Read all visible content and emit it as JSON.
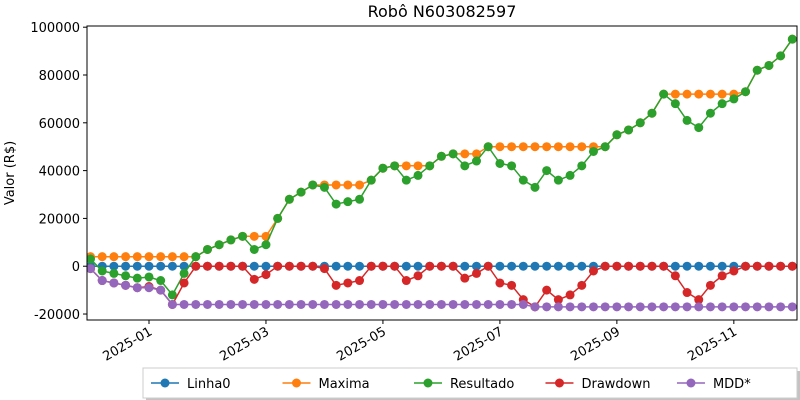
{
  "chart_data": {
    "type": "line",
    "title": "Robô N603082597",
    "y_label": "Valor (R$)",
    "categories": [
      null,
      null,
      null,
      null,
      null,
      "2025-01",
      null,
      null,
      null,
      null,
      null,
      null,
      null,
      null,
      null,
      "2025-03",
      null,
      null,
      null,
      null,
      null,
      null,
      null,
      null,
      null,
      "2025-05",
      null,
      null,
      null,
      null,
      null,
      null,
      null,
      null,
      null,
      "2025-07",
      null,
      null,
      null,
      null,
      null,
      null,
      null,
      null,
      null,
      "2025-09",
      null,
      null,
      null,
      null,
      null,
      null,
      null,
      null,
      null,
      "2025-11",
      null,
      null,
      null,
      null,
      null
    ],
    "ylim": [
      -22500,
      100500
    ],
    "yticks": [
      -20000,
      0,
      20000,
      40000,
      60000,
      80000,
      100000
    ],
    "legend": "bottom",
    "series": [
      {
        "name": "Linha0",
        "color": "#1f77b4",
        "values": [
          0,
          0,
          0,
          0,
          0,
          0,
          0,
          0,
          0,
          0,
          0,
          0,
          0,
          0,
          0,
          0,
          0,
          0,
          0,
          0,
          0,
          0,
          0,
          0,
          0,
          0,
          0,
          0,
          0,
          0,
          0,
          0,
          0,
          0,
          0,
          0,
          0,
          0,
          0,
          0,
          0,
          0,
          0,
          0,
          0,
          0,
          0,
          0,
          0,
          0,
          0,
          0,
          0,
          0,
          0,
          0,
          0,
          0,
          0,
          0,
          0
        ]
      },
      {
        "name": "Maxima",
        "color": "#ff7f0e",
        "values": [
          4000,
          4000,
          4000,
          4000,
          4000,
          4000,
          4000,
          4000,
          4000,
          4000,
          7000,
          9000,
          11000,
          12500,
          12500,
          12500,
          20000,
          28000,
          31000,
          34000,
          34000,
          34000,
          34000,
          34000,
          36000,
          41000,
          42000,
          42000,
          42000,
          42000,
          46000,
          47000,
          47000,
          47000,
          50000,
          50000,
          50000,
          50000,
          50000,
          50000,
          50000,
          50000,
          50000,
          50000,
          50000,
          55000,
          57000,
          60000,
          64000,
          72000,
          72000,
          72000,
          72000,
          72000,
          72000,
          72000,
          73000,
          82000,
          84000,
          88000,
          95000
        ]
      },
      {
        "name": "Resultado",
        "color": "#2ca02c",
        "values": [
          3000,
          -2000,
          -3000,
          -4000,
          -5000,
          -4500,
          -6000,
          -12000,
          -3000,
          4000,
          7000,
          9000,
          11000,
          12500,
          7000,
          9000,
          20000,
          28000,
          31000,
          34000,
          33000,
          26000,
          27000,
          28000,
          36000,
          41000,
          42000,
          36000,
          38000,
          42000,
          46000,
          47000,
          42000,
          44000,
          50000,
          43000,
          42000,
          36000,
          33000,
          40000,
          36000,
          38000,
          42000,
          48000,
          50000,
          55000,
          57000,
          60000,
          64000,
          72000,
          68000,
          61000,
          58000,
          64000,
          68000,
          70000,
          73000,
          82000,
          84000,
          88000,
          95000
        ]
      },
      {
        "name": "Drawdown",
        "color": "#d62728",
        "values": [
          -1000,
          -6000,
          -7000,
          -8000,
          -9000,
          -8500,
          -10000,
          -16000,
          -7000,
          0,
          0,
          0,
          0,
          0,
          -5500,
          -3500,
          0,
          0,
          0,
          0,
          -1000,
          -8000,
          -7000,
          -6000,
          0,
          0,
          0,
          -6000,
          -4000,
          0,
          0,
          0,
          -5000,
          -3000,
          0,
          -7000,
          -8000,
          -14000,
          -17000,
          -10000,
          -14000,
          -12000,
          -8000,
          -2000,
          0,
          0,
          0,
          0,
          0,
          0,
          -4000,
          -11000,
          -14000,
          -8000,
          -4000,
          -2000,
          0,
          0,
          0,
          0,
          0
        ]
      },
      {
        "name": "MDD*",
        "color": "#9467bd",
        "values": [
          -1000,
          -6000,
          -7000,
          -8000,
          -9000,
          -9000,
          -10000,
          -16000,
          -16000,
          -16000,
          -16000,
          -16000,
          -16000,
          -16000,
          -16000,
          -16000,
          -16000,
          -16000,
          -16000,
          -16000,
          -16000,
          -16000,
          -16000,
          -16000,
          -16000,
          -16000,
          -16000,
          -16000,
          -16000,
          -16000,
          -16000,
          -16000,
          -16000,
          -16000,
          -16000,
          -16000,
          -16000,
          -16000,
          -17000,
          -17000,
          -17000,
          -17000,
          -17000,
          -17000,
          -17000,
          -17000,
          -17000,
          -17000,
          -17000,
          -17000,
          -17000,
          -17000,
          -17000,
          -17000,
          -17000,
          -17000,
          -17000,
          -17000,
          -17000,
          -17000,
          -17000
        ]
      }
    ]
  }
}
